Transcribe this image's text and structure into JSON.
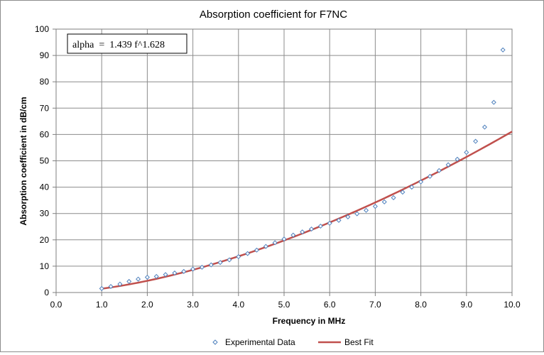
{
  "chart_data": {
    "type": "scatter",
    "title": "Absorption coefficient for F7NC",
    "xlabel": "Frequency in MHz",
    "ylabel": "Absorption coefficient in dB/cm",
    "xlim": [
      0,
      10
    ],
    "ylim": [
      0,
      100
    ],
    "xticks": [
      "0.0",
      "1.0",
      "2.0",
      "3.0",
      "4.0",
      "5.0",
      "6.0",
      "7.0",
      "8.0",
      "9.0",
      "10.0"
    ],
    "yticks": [
      "0",
      "10",
      "20",
      "30",
      "40",
      "50",
      "60",
      "70",
      "80",
      "90",
      "100"
    ],
    "x_tick_values": [
      0,
      1,
      2,
      3,
      4,
      5,
      6,
      7,
      8,
      9,
      10
    ],
    "y_tick_values": [
      0,
      10,
      20,
      30,
      40,
      50,
      60,
      70,
      80,
      90,
      100
    ],
    "grid": true,
    "legend_position": "bottom",
    "annotation": "alpha  =  1.439 f^1.628",
    "series": [
      {
        "name": "Experimental Data",
        "kind": "markers",
        "color": "#4f81bd",
        "marker": "diamond",
        "x": [
          1.0,
          1.2,
          1.4,
          1.6,
          1.8,
          2.0,
          2.2,
          2.4,
          2.6,
          2.8,
          3.0,
          3.2,
          3.4,
          3.6,
          3.8,
          4.0,
          4.2,
          4.4,
          4.6,
          4.8,
          5.0,
          5.2,
          5.4,
          5.6,
          5.8,
          6.0,
          6.2,
          6.4,
          6.6,
          6.8,
          7.0,
          7.2,
          7.4,
          7.6,
          7.8,
          8.0,
          8.2,
          8.4,
          8.6,
          8.8,
          9.0,
          9.2,
          9.4,
          9.6,
          9.8
        ],
        "y": [
          1.5,
          2.3,
          3.2,
          4.2,
          5.1,
          5.8,
          6.1,
          6.8,
          7.4,
          8.0,
          8.9,
          9.6,
          10.5,
          11.4,
          12.4,
          13.6,
          14.8,
          16.1,
          17.5,
          18.9,
          20.3,
          21.8,
          23.0,
          24.1,
          25.2,
          26.3,
          27.4,
          28.7,
          29.9,
          31.2,
          32.7,
          34.4,
          36.0,
          38.1,
          40.0,
          42.0,
          44.1,
          46.3,
          48.5,
          50.6,
          53.2,
          57.4,
          62.8,
          72.2,
          92.1
        ]
      },
      {
        "name": "Best Fit",
        "kind": "line",
        "color": "#c0504d",
        "function": "1.439*x^1.628",
        "x_range": [
          1.0,
          10.0
        ]
      }
    ]
  }
}
